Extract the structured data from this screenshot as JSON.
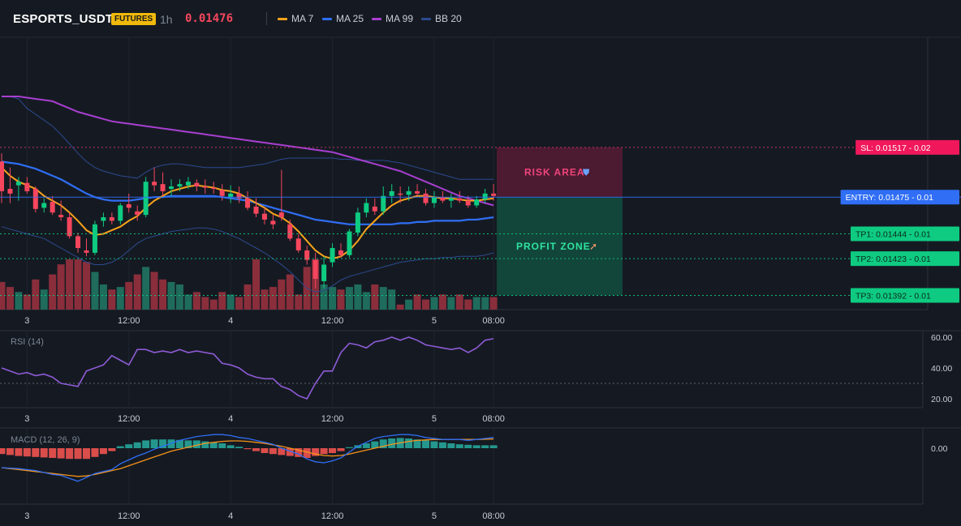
{
  "header": {
    "symbol": "ESPORTS_USDT",
    "badge": "FUTURES",
    "interval": "1h",
    "last_price": "0.01476"
  },
  "legend": [
    {
      "label": "MA 7",
      "color": "#f7a21b"
    },
    {
      "label": "MA 25",
      "color": "#2f6ef5"
    },
    {
      "label": "MA 99",
      "color": "#a83fd1"
    },
    {
      "label": "BB 20",
      "color": "#2c4a8f"
    }
  ],
  "levels": [
    {
      "label": "SL: 0.01517",
      "suffix": "- 0.02",
      "price": 0.01517,
      "color": "#f0185b",
      "line": "#d6336c"
    },
    {
      "label": "ENTRY: 0.01475",
      "suffix": "- 0.01",
      "price": 0.01475,
      "color": "#2f6ef5",
      "line": "#2f6ef5"
    },
    {
      "label": "TP1: 0.01444",
      "suffix": "- 0.01",
      "price": 0.01444,
      "color": "#0ecb81",
      "line": "#0ecb81"
    },
    {
      "label": "TP2: 0.01423",
      "suffix": "- 0.01",
      "price": 0.01423,
      "color": "#0ecb81",
      "line": "#0ecb81"
    },
    {
      "label": "TP3: 0.01392",
      "suffix": "- 0.01",
      "price": 0.01392,
      "color": "#0ecb81",
      "line": "#0ecb81"
    }
  ],
  "zones": {
    "risk_label": "RISK AREA",
    "profit_label": "PROFIT ZONE"
  },
  "x_ticks": [
    "3",
    "12:00",
    "4",
    "12:00",
    "5",
    "08:00"
  ],
  "rsi": {
    "title": "RSI (14)",
    "ticks": [
      "60.00",
      "40.00",
      "20.00"
    ],
    "ref_level": 30
  },
  "macd": {
    "title": "MACD (12, 26, 9)",
    "ticks": [
      "0.00"
    ]
  },
  "chart_data": {
    "type": "candlestick",
    "y_unit": "USDT",
    "ylim": [
      0.0138,
      0.0161
    ],
    "candles_ohlc": [
      [
        0.01505,
        0.01512,
        0.0147,
        0.0148
      ],
      [
        0.01482,
        0.015,
        0.0147,
        0.01478
      ],
      [
        0.01485,
        0.01492,
        0.01472,
        0.01488
      ],
      [
        0.01487,
        0.01492,
        0.01478,
        0.0148
      ],
      [
        0.01482,
        0.01484,
        0.01462,
        0.01465
      ],
      [
        0.01466,
        0.01474,
        0.01462,
        0.0147
      ],
      [
        0.01471,
        0.01476,
        0.0146,
        0.01462
      ],
      [
        0.0146,
        0.01472,
        0.01455,
        0.01458
      ],
      [
        0.01458,
        0.01462,
        0.0144,
        0.01442
      ],
      [
        0.01442,
        0.01445,
        0.01428,
        0.01432
      ],
      [
        0.0143,
        0.0144,
        0.01425,
        0.01428
      ],
      [
        0.01428,
        0.01455,
        0.01426,
        0.01452
      ],
      [
        0.01455,
        0.01462,
        0.0145,
        0.01458
      ],
      [
        0.01458,
        0.01462,
        0.01452,
        0.01455
      ],
      [
        0.01455,
        0.0147,
        0.01452,
        0.01468
      ],
      [
        0.01469,
        0.01478,
        0.01462,
        0.01466
      ],
      [
        0.01463,
        0.01468,
        0.01455,
        0.0146
      ],
      [
        0.0146,
        0.01492,
        0.01458,
        0.01488
      ],
      [
        0.01488,
        0.015,
        0.0148,
        0.01485
      ],
      [
        0.01486,
        0.01496,
        0.01476,
        0.0148
      ],
      [
        0.01482,
        0.0149,
        0.01476,
        0.01484
      ],
      [
        0.01484,
        0.0149,
        0.0148,
        0.01486
      ],
      [
        0.01485,
        0.01492,
        0.01482,
        0.01488
      ],
      [
        0.01487,
        0.0149,
        0.0148,
        0.01484
      ],
      [
        0.01484,
        0.0149,
        0.01478,
        0.01483
      ],
      [
        0.01483,
        0.01488,
        0.01478,
        0.01482
      ],
      [
        0.01481,
        0.01486,
        0.01472,
        0.01476
      ],
      [
        0.01475,
        0.01485,
        0.0147,
        0.01478
      ],
      [
        0.01478,
        0.01484,
        0.0147,
        0.01474
      ],
      [
        0.01474,
        0.0148,
        0.01464,
        0.01466
      ],
      [
        0.01467,
        0.01474,
        0.01458,
        0.01461
      ],
      [
        0.01461,
        0.01466,
        0.01452,
        0.01456
      ],
      [
        0.01455,
        0.0146,
        0.01448,
        0.01452
      ],
      [
        0.01462,
        0.01498,
        0.01455,
        0.01458
      ],
      [
        0.01452,
        0.01456,
        0.01438,
        0.0144
      ],
      [
        0.0144,
        0.01444,
        0.01428,
        0.0143
      ],
      [
        0.0143,
        0.01434,
        0.01418,
        0.01422
      ],
      [
        0.01422,
        0.01428,
        0.01398,
        0.01406
      ],
      [
        0.01404,
        0.01425,
        0.01398,
        0.01418
      ],
      [
        0.0142,
        0.01436,
        0.01416,
        0.01432
      ],
      [
        0.0143,
        0.01436,
        0.01424,
        0.01426
      ],
      [
        0.01426,
        0.01448,
        0.01424,
        0.01446
      ],
      [
        0.01445,
        0.01466,
        0.01442,
        0.01462
      ],
      [
        0.01462,
        0.01474,
        0.01458,
        0.0147
      ],
      [
        0.01467,
        0.01474,
        0.0146,
        0.01463
      ],
      [
        0.01463,
        0.01484,
        0.0146,
        0.01476
      ],
      [
        0.01476,
        0.01486,
        0.0147,
        0.0148
      ],
      [
        0.01478,
        0.01484,
        0.0147,
        0.01477
      ],
      [
        0.01477,
        0.01484,
        0.01472,
        0.0148
      ],
      [
        0.0148,
        0.01486,
        0.01476,
        0.01478
      ],
      [
        0.01478,
        0.01482,
        0.01468,
        0.0147
      ],
      [
        0.0147,
        0.0148,
        0.01466,
        0.01475
      ],
      [
        0.01475,
        0.0148,
        0.0147,
        0.01472
      ],
      [
        0.01472,
        0.01478,
        0.01466,
        0.01474
      ],
      [
        0.01474,
        0.0148,
        0.0147,
        0.01472
      ],
      [
        0.01472,
        0.01476,
        0.01466,
        0.01468
      ],
      [
        0.01468,
        0.01476,
        0.01466,
        0.01473
      ],
      [
        0.01473,
        0.01482,
        0.0147,
        0.01478
      ],
      [
        0.01478,
        0.01486,
        0.01472,
        0.01476
      ]
    ],
    "volume_relative": [
      0.55,
      0.45,
      0.35,
      0.3,
      0.6,
      0.4,
      0.7,
      0.9,
      1.0,
      1.0,
      0.95,
      0.75,
      0.5,
      0.4,
      0.45,
      0.55,
      0.7,
      0.85,
      0.75,
      0.6,
      0.55,
      0.5,
      0.3,
      0.35,
      0.25,
      0.2,
      0.35,
      0.3,
      0.25,
      0.5,
      1.0,
      0.4,
      0.45,
      0.6,
      0.7,
      0.3,
      0.85,
      1.0,
      0.5,
      0.45,
      0.4,
      0.45,
      0.5,
      0.35,
      0.5,
      0.45,
      0.4,
      0.1,
      0.2,
      0.3,
      0.2,
      0.25,
      0.3,
      0.25,
      0.3,
      0.2,
      0.25,
      0.25,
      0.25
    ],
    "rsi_values": [
      40,
      38,
      36,
      37,
      35,
      36,
      34,
      30,
      29,
      28,
      38,
      40,
      42,
      48,
      45,
      42,
      52,
      52,
      50,
      51,
      50,
      52,
      50,
      51,
      50,
      49,
      43,
      42,
      40,
      36,
      34,
      33,
      33,
      28,
      26,
      22,
      20,
      30,
      38,
      38,
      50,
      56,
      55,
      53,
      57,
      58,
      60,
      58,
      60,
      58,
      55,
      54,
      53,
      52,
      53,
      50,
      53,
      58,
      59
    ],
    "macd_hist": [
      -0.6,
      -0.7,
      -0.8,
      -0.85,
      -0.9,
      -0.95,
      -1.0,
      -1.05,
      -1.1,
      -1.1,
      -1.1,
      -0.9,
      -0.6,
      -0.3,
      0.2,
      0.4,
      0.6,
      0.8,
      0.9,
      0.9,
      0.9,
      0.85,
      0.8,
      0.8,
      0.7,
      0.6,
      0.5,
      0.3,
      0.15,
      -0.1,
      -0.3,
      -0.5,
      -0.6,
      -0.7,
      -0.8,
      -0.9,
      -1.0,
      -0.8,
      -0.6,
      -0.5,
      -0.3,
      0.1,
      0.3,
      0.5,
      0.7,
      0.9,
      1.0,
      1.05,
      1.0,
      0.9,
      0.8,
      0.7,
      0.6,
      0.5,
      0.4,
      0.35,
      0.3,
      0.3,
      0.3
    ],
    "macd_line": [
      -2.0,
      -2.05,
      -2.1,
      -2.2,
      -2.3,
      -2.5,
      -2.7,
      -2.8,
      -3.1,
      -3.4,
      -3.0,
      -2.6,
      -2.4,
      -2.2,
      -1.6,
      -1.2,
      -0.8,
      -0.5,
      -0.1,
      0.2,
      0.5,
      0.8,
      1.0,
      1.2,
      1.3,
      1.4,
      1.4,
      1.3,
      1.1,
      1.0,
      0.8,
      0.6,
      0.4,
      0.0,
      -0.3,
      -0.6,
      -1.1,
      -1.4,
      -1.5,
      -1.3,
      -1.0,
      -0.4,
      0.2,
      0.6,
      1.0,
      1.2,
      1.3,
      1.4,
      1.4,
      1.3,
      1.1,
      1.0,
      0.9,
      0.9,
      0.9,
      0.8,
      0.9,
      1.0,
      1.1
    ],
    "signal_line": [
      -2.0,
      -2.1,
      -2.2,
      -2.3,
      -2.4,
      -2.5,
      -2.6,
      -2.7,
      -2.8,
      -2.9,
      -2.85,
      -2.7,
      -2.5,
      -2.3,
      -2.1,
      -1.8,
      -1.5,
      -1.2,
      -0.9,
      -0.6,
      -0.3,
      -0.1,
      0.1,
      0.3,
      0.5,
      0.6,
      0.7,
      0.75,
      0.75,
      0.7,
      0.6,
      0.5,
      0.35,
      0.2,
      0.0,
      -0.2,
      -0.4,
      -0.6,
      -0.75,
      -0.8,
      -0.75,
      -0.6,
      -0.4,
      -0.2,
      0.0,
      0.2,
      0.4,
      0.55,
      0.7,
      0.8,
      0.85,
      0.9,
      0.9,
      0.9,
      0.9,
      0.9,
      0.9,
      0.92,
      0.95
    ],
    "ma7": [
      0.015,
      0.01493,
      0.01488,
      0.01485,
      0.01482,
      0.01476,
      0.01472,
      0.01468,
      0.01462,
      0.01455,
      0.01447,
      0.01443,
      0.01444,
      0.01447,
      0.0145,
      0.01455,
      0.01459,
      0.01466,
      0.01472,
      0.01476,
      0.0148,
      0.01482,
      0.01484,
      0.01485,
      0.01484,
      0.01483,
      0.01481,
      0.0148,
      0.01478,
      0.01474,
      0.0147,
      0.01466,
      0.01461,
      0.01458,
      0.01453,
      0.01446,
      0.01438,
      0.0143,
      0.01425,
      0.01423,
      0.01425,
      0.0143,
      0.01438,
      0.01448,
      0.01455,
      0.01462,
      0.01468,
      0.01472,
      0.01474,
      0.01476,
      0.01476,
      0.01475,
      0.01474,
      0.01474,
      0.01473,
      0.01472,
      0.01472,
      0.01473,
      0.01474
    ],
    "ma25": [
      0.01505,
      0.01504,
      0.01503,
      0.01501,
      0.01499,
      0.01496,
      0.01493,
      0.0149,
      0.01486,
      0.01482,
      0.01478,
      0.01475,
      0.01473,
      0.01472,
      0.01472,
      0.01472,
      0.01473,
      0.01474,
      0.01475,
      0.01475,
      0.01476,
      0.01476,
      0.01476,
      0.01476,
      0.01476,
      0.01476,
      0.01475,
      0.01474,
      0.01473,
      0.01472,
      0.0147,
      0.01468,
      0.01466,
      0.01464,
      0.01462,
      0.0146,
      0.01458,
      0.01456,
      0.01455,
      0.01454,
      0.01453,
      0.01452,
      0.01452,
      0.01452,
      0.01452,
      0.01452,
      0.01452,
      0.01453,
      0.01453,
      0.01454,
      0.01454,
      0.01455,
      0.01455,
      0.01455,
      0.01455,
      0.01456,
      0.01456,
      0.01457,
      0.01458
    ],
    "ma99": [
      0.0156,
      0.0156,
      0.0156,
      0.01559,
      0.01558,
      0.01557,
      0.01556,
      0.01553,
      0.0155,
      0.01547,
      0.01545,
      0.01543,
      0.01541,
      0.01539,
      0.01538,
      0.01537,
      0.01536,
      0.01535,
      0.01534,
      0.01533,
      0.01532,
      0.01531,
      0.0153,
      0.01529,
      0.01528,
      0.01527,
      0.01526,
      0.01525,
      0.01524,
      0.01523,
      0.01522,
      0.01521,
      0.0152,
      0.01519,
      0.01518,
      0.01517,
      0.01516,
      0.01515,
      0.01514,
      0.01513,
      0.01511,
      0.01509,
      0.01507,
      0.01505,
      0.01503,
      0.01501,
      0.01499,
      0.01497,
      0.01494,
      0.01491,
      0.01488,
      0.01485,
      0.01482,
      0.01479,
      0.01476,
      0.01474,
      0.01472,
      0.0147,
      0.01468
    ],
    "bb_upper": [
      0.0156,
      0.0156,
      0.01558,
      0.0155,
      0.01545,
      0.0154,
      0.01535,
      0.01528,
      0.0152,
      0.01512,
      0.01505,
      0.015,
      0.01497,
      0.01495,
      0.01493,
      0.01492,
      0.01491,
      0.01496,
      0.015,
      0.01502,
      0.01503,
      0.01503,
      0.01502,
      0.01501,
      0.015,
      0.015,
      0.015,
      0.015,
      0.015,
      0.01501,
      0.01502,
      0.01503,
      0.01505,
      0.01507,
      0.01508,
      0.01508,
      0.01508,
      0.01508,
      0.01508,
      0.01508,
      0.01507,
      0.01507,
      0.01506,
      0.01506,
      0.01506,
      0.01506,
      0.01505,
      0.01504,
      0.01502,
      0.015,
      0.01498,
      0.01496,
      0.01494,
      0.01492,
      0.0149,
      0.0149,
      0.0149,
      0.0149,
      0.0149
    ],
    "bb_lower": [
      0.0145,
      0.01448,
      0.01446,
      0.01444,
      0.01442,
      0.0144,
      0.01436,
      0.01432,
      0.01428,
      0.01424,
      0.0142,
      0.01418,
      0.01418,
      0.0142,
      0.01424,
      0.0143,
      0.01436,
      0.0144,
      0.01442,
      0.01444,
      0.01446,
      0.01447,
      0.01448,
      0.01449,
      0.01449,
      0.01448,
      0.01446,
      0.01443,
      0.0144,
      0.01436,
      0.01432,
      0.01428,
      0.01423,
      0.01418,
      0.01412,
      0.01405,
      0.01398,
      0.01395,
      0.01396,
      0.014,
      0.01405,
      0.01408,
      0.0141,
      0.01412,
      0.01414,
      0.01416,
      0.01418,
      0.0142,
      0.01421,
      0.01422,
      0.01423,
      0.01423,
      0.01424,
      0.01424,
      0.01425,
      0.01425,
      0.01425,
      0.01426,
      0.01428
    ]
  }
}
